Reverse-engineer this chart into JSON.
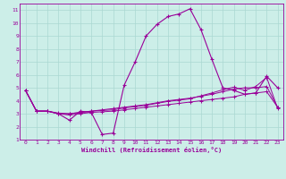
{
  "xlabel": "Windchill (Refroidissement éolien,°C)",
  "background_color": "#cceee8",
  "grid_color": "#aad8d2",
  "line_color": "#990099",
  "xlim": [
    -0.5,
    23.5
  ],
  "ylim": [
    1,
    11.5
  ],
  "xticks": [
    0,
    1,
    2,
    3,
    4,
    5,
    6,
    7,
    8,
    9,
    10,
    11,
    12,
    13,
    14,
    15,
    16,
    17,
    18,
    19,
    20,
    21,
    22,
    23
  ],
  "yticks": [
    1,
    2,
    3,
    4,
    5,
    6,
    7,
    8,
    9,
    10,
    11
  ],
  "line1_x": [
    0,
    1,
    2,
    3,
    4,
    5,
    6,
    7,
    8,
    9,
    10,
    11,
    12,
    13,
    14,
    15,
    16,
    17,
    18,
    19,
    20,
    21,
    22,
    23
  ],
  "line1_y": [
    4.8,
    3.2,
    3.2,
    3.0,
    2.5,
    3.2,
    3.1,
    1.4,
    1.5,
    5.2,
    7.0,
    9.0,
    9.9,
    10.5,
    10.7,
    11.1,
    9.5,
    7.2,
    5.0,
    4.8,
    4.5,
    4.6,
    5.9,
    5.0
  ],
  "line2_x": [
    0,
    1,
    2,
    3,
    4,
    5,
    6,
    7,
    8,
    9,
    10,
    11,
    12,
    13,
    14,
    15,
    16,
    17,
    18,
    19,
    20,
    21,
    22,
    23
  ],
  "line2_y": [
    4.8,
    3.2,
    3.2,
    3.0,
    2.9,
    3.0,
    3.1,
    3.15,
    3.2,
    3.3,
    3.4,
    3.5,
    3.6,
    3.7,
    3.8,
    3.9,
    4.0,
    4.1,
    4.2,
    4.3,
    4.5,
    4.6,
    4.7,
    3.5
  ],
  "line3_x": [
    0,
    1,
    2,
    3,
    4,
    5,
    6,
    7,
    8,
    9,
    10,
    11,
    12,
    13,
    14,
    15,
    16,
    17,
    18,
    19,
    20,
    21,
    22,
    23
  ],
  "line3_y": [
    4.8,
    3.2,
    3.2,
    3.0,
    3.0,
    3.1,
    3.2,
    3.3,
    3.4,
    3.5,
    3.6,
    3.7,
    3.85,
    4.0,
    4.1,
    4.2,
    4.35,
    4.5,
    4.7,
    4.9,
    5.0,
    5.0,
    5.1,
    3.5
  ],
  "line4_x": [
    0,
    1,
    2,
    3,
    4,
    5,
    6,
    7,
    8,
    9,
    10,
    11,
    12,
    13,
    14,
    15,
    16,
    17,
    18,
    19,
    20,
    21,
    22,
    23
  ],
  "line4_y": [
    4.8,
    3.2,
    3.2,
    3.05,
    3.0,
    3.1,
    3.2,
    3.25,
    3.3,
    3.45,
    3.55,
    3.65,
    3.8,
    3.95,
    4.05,
    4.15,
    4.38,
    4.6,
    4.85,
    5.05,
    4.8,
    5.1,
    5.8,
    3.4
  ]
}
